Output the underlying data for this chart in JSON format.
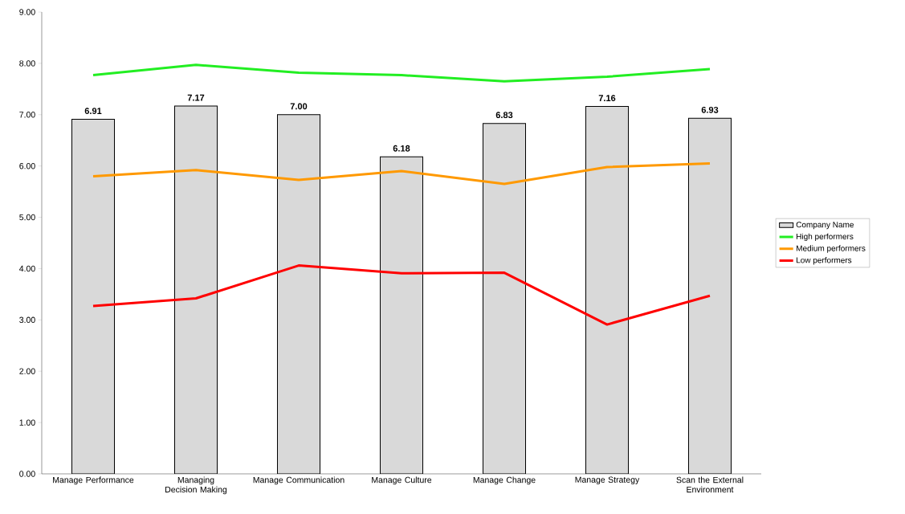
{
  "chart_data": {
    "type": "bar",
    "categories": [
      "Manage Performance",
      "Managing Decision Making",
      "Manage Communication",
      "Manage Culture",
      "Manage Change",
      "Manage Strategy",
      "Scan the External Environment"
    ],
    "series": [
      {
        "name": "Company Name",
        "color": "#d9d9d9",
        "values": [
          6.91,
          7.17,
          7.0,
          6.18,
          6.83,
          7.16,
          6.93
        ],
        "value_labels": [
          "6.91",
          "7.17",
          "7.00",
          "6.18",
          "6.83",
          "7.16",
          "6.93"
        ]
      },
      {
        "name": "High performers",
        "type": "line",
        "color": "#22ee22",
        "values": [
          7.77,
          7.97,
          7.82,
          7.77,
          7.65,
          7.74,
          7.89
        ]
      },
      {
        "name": "Medium performers",
        "type": "line",
        "color": "#ff9900",
        "values": [
          5.8,
          5.92,
          5.73,
          5.9,
          5.65,
          5.98,
          6.05
        ]
      },
      {
        "name": "Low performers",
        "type": "line",
        "color": "#ff0000",
        "values": [
          3.27,
          3.42,
          4.06,
          3.91,
          3.92,
          2.91,
          3.47
        ]
      }
    ],
    "ylim": [
      0,
      9
    ],
    "yticks": [
      {
        "value": 0,
        "label": "0.00"
      },
      {
        "value": 1,
        "label": "1.00"
      },
      {
        "value": 2,
        "label": "2.00"
      },
      {
        "value": 3,
        "label": "3.00"
      },
      {
        "value": 4,
        "label": "4.00"
      },
      {
        "value": 5,
        "label": "5.00"
      },
      {
        "value": 6,
        "label": "6.00"
      },
      {
        "value": 7,
        "label": "7.00"
      },
      {
        "value": 8,
        "label": "8.00"
      },
      {
        "value": 9,
        "label": "9.00"
      }
    ],
    "legend": "right",
    "grid": false
  }
}
